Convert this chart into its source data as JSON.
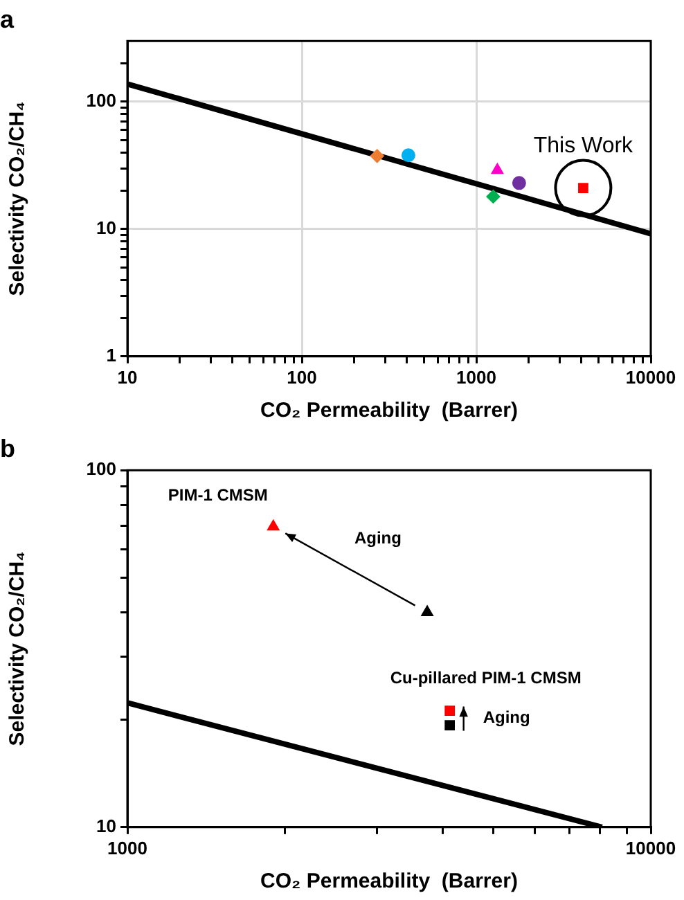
{
  "chart_data": [
    {
      "type": "scatter",
      "title": "a",
      "xlabel": "CO₂ Permeability  (Barrer)",
      "ylabel": "Selectivity CO₂/CH₄",
      "log": "xy",
      "grid": true,
      "xlim": [
        10,
        10000
      ],
      "ylim": [
        1,
        300
      ],
      "xticks": [
        10,
        {
          "value": 20,
          "label": null
        },
        {
          "value": 30,
          "label": null
        },
        {
          "value": 40,
          "label": null
        },
        {
          "value": 50,
          "label": null
        },
        {
          "value": 60,
          "label": null
        },
        {
          "value": 70,
          "label": null
        },
        {
          "value": 80,
          "label": null
        },
        {
          "value": 90,
          "label": null
        },
        100,
        {
          "value": 200,
          "label": null
        },
        {
          "value": 300,
          "label": null
        },
        {
          "value": 400,
          "label": null
        },
        {
          "value": 500,
          "label": null
        },
        {
          "value": 600,
          "label": null
        },
        {
          "value": 700,
          "label": null
        },
        {
          "value": 800,
          "label": null
        },
        {
          "value": 900,
          "label": null
        },
        1000,
        {
          "value": 2000,
          "label": null
        },
        {
          "value": 3000,
          "label": null
        },
        {
          "value": 4000,
          "label": null
        },
        {
          "value": 5000,
          "label": null
        },
        {
          "value": 6000,
          "label": null
        },
        {
          "value": 7000,
          "label": null
        },
        {
          "value": 8000,
          "label": null
        },
        {
          "value": 9000,
          "label": null
        },
        10000
      ],
      "yticks": [
        1,
        {
          "value": 2,
          "label": null
        },
        {
          "value": 3,
          "label": null
        },
        {
          "value": 4,
          "label": null
        },
        {
          "value": 5,
          "label": null
        },
        {
          "value": 6,
          "label": null
        },
        {
          "value": 7,
          "label": null
        },
        {
          "value": 8,
          "label": null
        },
        {
          "value": 9,
          "label": null
        },
        10,
        {
          "value": 20,
          "label": null
        },
        {
          "value": 30,
          "label": null
        },
        {
          "value": 40,
          "label": null
        },
        {
          "value": 50,
          "label": null
        },
        {
          "value": 60,
          "label": null
        },
        {
          "value": 70,
          "label": null
        },
        {
          "value": 80,
          "label": null
        },
        {
          "value": 90,
          "label": null
        },
        100,
        {
          "value": 200,
          "label": null
        }
      ],
      "series": [
        {
          "type": "line",
          "color": "#000000",
          "marker": "none",
          "x": [
            10,
            10000
          ],
          "values": [
            138,
            9.2
          ]
        },
        {
          "color": "#ed7d31",
          "marker": "diamond",
          "x": [
            270
          ],
          "values": [
            37.5
          ]
        },
        {
          "color": "#00b0f0",
          "marker": "circle",
          "x": [
            408
          ],
          "values": [
            38
          ]
        },
        {
          "color": "#ff00cc",
          "marker": "triangle",
          "x": [
            1320
          ],
          "values": [
            29
          ]
        },
        {
          "color": "#7030a0",
          "marker": "circle",
          "x": [
            1760
          ],
          "values": [
            23
          ]
        },
        {
          "color": "#00b050",
          "marker": "diamond",
          "x": [
            1250
          ],
          "values": [
            18
          ]
        },
        {
          "color": "#ff0000",
          "marker": "square",
          "x": [
            4100
          ],
          "values": [
            21
          ]
        }
      ],
      "annotations": [
        "This Work"
      ]
    },
    {
      "type": "scatter",
      "title": "b",
      "xlabel": "CO₂ Permeability  (Barrer)",
      "ylabel": "Selectivity CO₂/CH₄",
      "log": "xy",
      "grid": false,
      "xlim": [
        1000,
        10000
      ],
      "ylim": [
        10,
        100
      ],
      "xticks": [
        1000,
        {
          "value": 2000,
          "label": null
        },
        {
          "value": 3000,
          "label": null
        },
        {
          "value": 4000,
          "label": null
        },
        {
          "value": 5000,
          "label": null
        },
        {
          "value": 6000,
          "label": null
        },
        {
          "value": 7000,
          "label": null
        },
        {
          "value": 8000,
          "label": null
        },
        {
          "value": 9000,
          "label": null
        },
        10000
      ],
      "yticks": [
        10,
        {
          "value": 20,
          "label": null
        },
        {
          "value": 30,
          "label": null
        },
        {
          "value": 40,
          "label": null
        },
        {
          "value": 50,
          "label": null
        },
        {
          "value": 60,
          "label": null
        },
        {
          "value": 70,
          "label": null
        },
        {
          "value": 80,
          "label": null
        },
        {
          "value": 90,
          "label": null
        },
        100
      ],
      "series": [
        {
          "type": "line",
          "color": "#000000",
          "marker": "none",
          "x": [
            1000,
            8070
          ],
          "values": [
            22.3,
            10
          ]
        },
        {
          "color": "#ff0000",
          "marker": "triangle",
          "x": [
            1900
          ],
          "values": [
            69.5
          ]
        },
        {
          "color": "#000000",
          "marker": "triangle",
          "x": [
            3740
          ],
          "values": [
            40
          ]
        },
        {
          "color": "#ff0000",
          "marker": "square",
          "x": [
            4130
          ],
          "values": [
            21.2
          ]
        },
        {
          "color": "#000000",
          "marker": "square",
          "x": [
            4130
          ],
          "values": [
            19.3
          ]
        }
      ],
      "annotations": [
        "PIM-1 CMSM",
        "Aging",
        "Cu-pillared PIM-1 CMSM",
        "Aging"
      ]
    }
  ]
}
